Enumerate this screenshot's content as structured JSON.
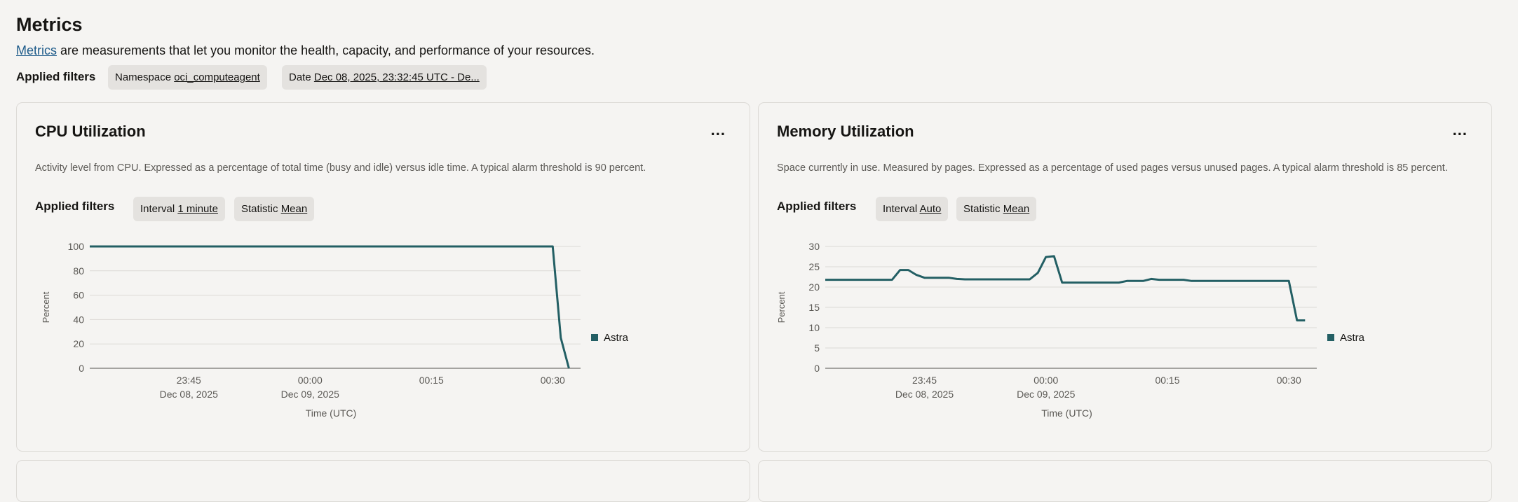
{
  "page": {
    "title": "Metrics",
    "description_link": "Metrics",
    "description_rest": " are measurements that let you monitor the health, capacity, and performance of your resources.",
    "applied_filters_label": "Applied filters",
    "filters": [
      {
        "name": "Namespace",
        "value": "oci_computeagent"
      },
      {
        "name": "Date",
        "value": "Dec 08, 2025, 23:32:45 UTC - De..."
      }
    ]
  },
  "cards": [
    {
      "title": "CPU Utilization",
      "menu_label": "...",
      "description": "Activity level from CPU. Expressed as a percentage of total time (busy and idle) versus idle time. A typical alarm threshold is 90 percent.",
      "applied_filters_label": "Applied filters",
      "filters": [
        {
          "name": "Interval",
          "value": "1 minute"
        },
        {
          "name": "Statistic",
          "value": "Mean"
        }
      ]
    },
    {
      "title": "Memory Utilization",
      "menu_label": "...",
      "description": "Space currently in use. Measured by pages. Expressed as a percentage of used pages versus unused pages. A typical alarm threshold is 85 percent.",
      "applied_filters_label": "Applied filters",
      "filters": [
        {
          "name": "Interval",
          "value": "Auto"
        },
        {
          "name": "Statistic",
          "value": "Mean"
        }
      ]
    }
  ],
  "chart_data": [
    {
      "type": "line",
      "xlabel": "Time (UTC)",
      "ylabel": "Percent",
      "ylim": [
        0,
        100
      ],
      "yticks": [
        0,
        20,
        40,
        60,
        80,
        100
      ],
      "xlim": [
        "2025-12-08T23:32:45",
        "2025-12-09T00:32:45"
      ],
      "xticks": [
        {
          "time": "2025-12-08T23:45",
          "label": "23:45",
          "sublabel": "Dec 08, 2025"
        },
        {
          "time": "2025-12-09T00:00",
          "label": "00:00",
          "sublabel": "Dec 09, 2025"
        },
        {
          "time": "2025-12-09T00:15",
          "label": "00:15",
          "sublabel": ""
        },
        {
          "time": "2025-12-09T00:30",
          "label": "00:30",
          "sublabel": ""
        }
      ],
      "grid": true,
      "legend": "right",
      "color": "#235f64",
      "series": [
        {
          "name": "Astra",
          "points": [
            [
              "2025-12-08T23:32:45",
              100
            ],
            [
              "2025-12-09T00:30",
              100
            ],
            [
              "2025-12-09T00:31",
              25
            ],
            [
              "2025-12-09T00:32",
              0
            ]
          ]
        }
      ]
    },
    {
      "type": "line",
      "xlabel": "Time (UTC)",
      "ylabel": "Percent",
      "ylim": [
        0,
        30
      ],
      "yticks": [
        0,
        5,
        10,
        15,
        20,
        25,
        30
      ],
      "xlim": [
        "2025-12-08T23:32:45",
        "2025-12-09T00:32:45"
      ],
      "xticks": [
        {
          "time": "2025-12-08T23:45",
          "label": "23:45",
          "sublabel": "Dec 08, 2025"
        },
        {
          "time": "2025-12-09T00:00",
          "label": "00:00",
          "sublabel": "Dec 09, 2025"
        },
        {
          "time": "2025-12-09T00:15",
          "label": "00:15",
          "sublabel": ""
        },
        {
          "time": "2025-12-09T00:30",
          "label": "00:30",
          "sublabel": ""
        }
      ],
      "grid": true,
      "legend": "right",
      "color": "#235f64",
      "series": [
        {
          "name": "Astra",
          "points": [
            [
              "2025-12-08T23:32:45",
              21.8
            ],
            [
              "2025-12-08T23:41",
              21.8
            ],
            [
              "2025-12-08T23:42",
              24.2
            ],
            [
              "2025-12-08T23:43",
              24.2
            ],
            [
              "2025-12-08T23:44",
              23.0
            ],
            [
              "2025-12-08T23:45",
              22.3
            ],
            [
              "2025-12-08T23:48",
              22.3
            ],
            [
              "2025-12-08T23:49",
              22.0
            ],
            [
              "2025-12-08T23:50",
              21.9
            ],
            [
              "2025-12-08T23:58",
              21.9
            ],
            [
              "2025-12-08T23:59",
              23.5
            ],
            [
              "2025-12-09T00:00",
              27.4
            ],
            [
              "2025-12-09T00:01",
              27.6
            ],
            [
              "2025-12-09T00:02",
              21.1
            ],
            [
              "2025-12-09T00:09",
              21.1
            ],
            [
              "2025-12-09T00:10",
              21.5
            ],
            [
              "2025-12-09T00:12",
              21.5
            ],
            [
              "2025-12-09T00:13",
              22.0
            ],
            [
              "2025-12-09T00:14",
              21.8
            ],
            [
              "2025-12-09T00:17",
              21.8
            ],
            [
              "2025-12-09T00:18",
              21.5
            ],
            [
              "2025-12-09T00:30",
              21.5
            ],
            [
              "2025-12-09T00:31",
              11.8
            ],
            [
              "2025-12-09T00:32",
              11.8
            ]
          ]
        }
      ]
    }
  ]
}
